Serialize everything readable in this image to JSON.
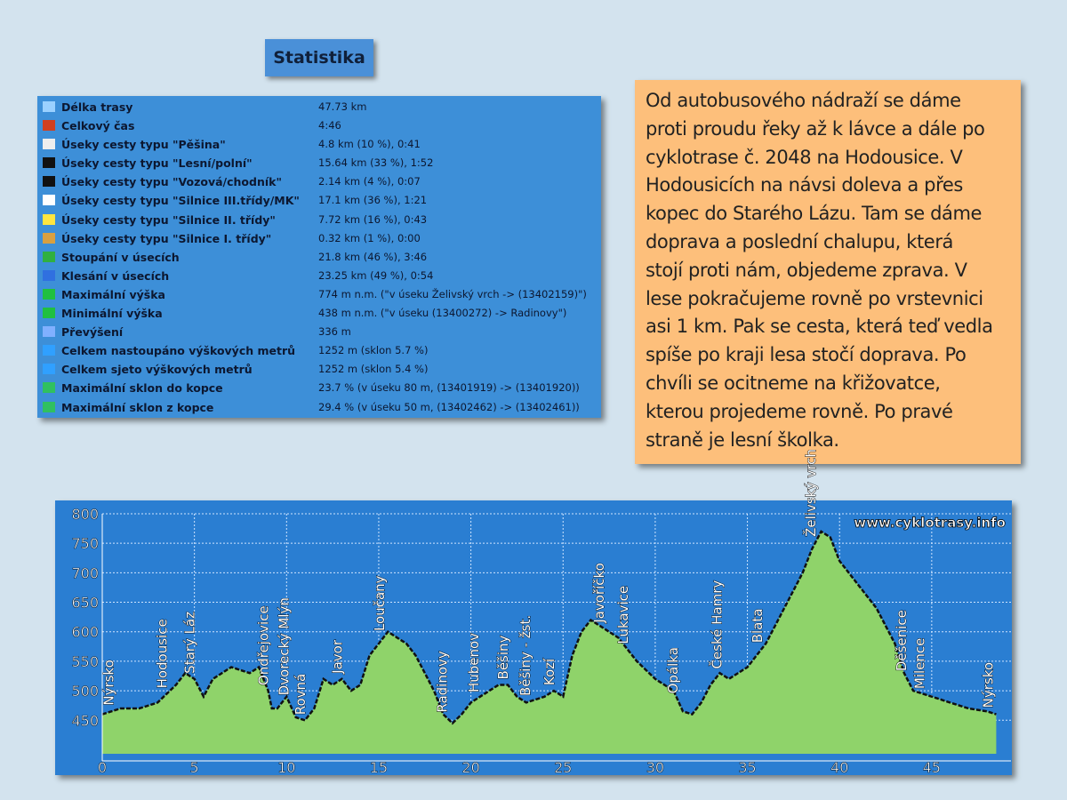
{
  "title": "Statistika",
  "stats": [
    {
      "label": "Délka trasy",
      "value": "47.73 km"
    },
    {
      "label": "Celkový čas",
      "value": "4:46"
    },
    {
      "label": "Úseky cesty typu \"Pěšina\"",
      "value": "4.8 km (10 %), 0:41"
    },
    {
      "label": "Úseky cesty typu \"Lesní/polní\"",
      "value": "15.64 km (33 %), 1:52"
    },
    {
      "label": "Úseky cesty typu \"Vozová/chodník\"",
      "value": "2.14 km (4 %), 0:07"
    },
    {
      "label": "Úseky cesty typu \"Silnice III.třídy/MK\"",
      "value": "17.1 km (36 %), 1:21"
    },
    {
      "label": "Úseky cesty typu \"Silnice II. třídy\"",
      "value": "7.72 km (16 %), 0:43"
    },
    {
      "label": "Úseky cesty typu \"Silnice I. třídy\"",
      "value": "0.32 km (1 %), 0:00"
    },
    {
      "label": "Stoupání v úsecích",
      "value": "21.8 km (46 %), 3:46"
    },
    {
      "label": "Klesání v úsecích",
      "value": "23.25 km (49 %), 0:54"
    },
    {
      "label": "Maximální výška",
      "value": "774 m n.m. (\"v úseku Želivský vrch -> (13402159)\")"
    },
    {
      "label": "Minimální výška",
      "value": "438 m n.m. (\"v úseku (13400272) -> Radinovy\")"
    },
    {
      "label": "Převýšení",
      "value": "336 m"
    },
    {
      "label": "Celkem nastoupáno výškových metrů",
      "value": "1252 m (sklon 5.7 %)"
    },
    {
      "label": "Celkem sjeto výškových metrů",
      "value": "1252 m (sklon 5.4 %)"
    },
    {
      "label": "Maximální sklon do kopce",
      "value": "23.7 % (v úseku 80 m, (13401919) -> (13401920))"
    },
    {
      "label": "Maximální sklon z kopce",
      "value": "29.4 % (v úseku 50 m, (13402462) -> (13402461))"
    }
  ],
  "description": [
    "Od autobusového nádraží se dáme",
    "proti proudu řeky až k lávce a dále po",
    "cyklotrase č. 2048 na Hodousice. V",
    "Hodousicích na návsi doleva a přes",
    "kopec do Starého Lázu. Tam se dáme",
    "doprava a poslední chalupu, která",
    "stojí proti nám, objedeme zprava. V",
    "lese pokračujeme rovně po vrstevnici",
    "asi 1 km. Pak se cesta, která teď vedla",
    "spíše po kraji lesa stočí doprava. Po",
    "chvíli se ocitneme na křižovatce,",
    "kterou projedeme  rovně. Po pravé",
    "straně je lesní školka."
  ],
  "chart_data": {
    "type": "area",
    "watermark": "www.cyklotrasy.info",
    "color": "#8fd36a",
    "x": [
      0,
      1,
      2,
      3,
      4,
      4.5,
      5,
      5.5,
      6,
      7,
      8,
      8.5,
      9,
      9.2,
      9.5,
      10,
      10.5,
      11,
      11.5,
      12,
      12.5,
      13,
      13.5,
      14,
      14.5,
      15,
      15.5,
      16,
      16.5,
      17,
      17.5,
      18,
      18.5,
      19,
      19.5,
      20,
      21,
      21.5,
      22,
      22.5,
      23,
      24,
      24.5,
      25,
      25.5,
      26,
      26.5,
      27,
      28,
      29,
      30,
      31,
      31.5,
      32,
      32.5,
      33,
      33.5,
      34,
      35,
      35.5,
      36,
      37,
      38,
      38.5,
      39,
      39.5,
      40,
      41,
      42,
      43,
      43.5,
      44,
      45,
      46,
      47,
      48,
      48.5
    ],
    "values": [
      460,
      470,
      470,
      480,
      510,
      530,
      520,
      490,
      520,
      540,
      530,
      540,
      500,
      470,
      470,
      490,
      455,
      450,
      470,
      520,
      510,
      520,
      500,
      510,
      560,
      580,
      600,
      590,
      580,
      560,
      530,
      500,
      460,
      445,
      460,
      480,
      500,
      510,
      510,
      490,
      480,
      490,
      500,
      490,
      560,
      600,
      620,
      610,
      590,
      550,
      520,
      500,
      465,
      460,
      480,
      510,
      530,
      520,
      540,
      560,
      580,
      640,
      700,
      740,
      770,
      760,
      720,
      680,
      640,
      580,
      530,
      500,
      490,
      480,
      470,
      465,
      460
    ],
    "xlim": [
      0,
      49.3
    ],
    "ylim": [
      360,
      800
    ],
    "xticks": [
      0,
      5,
      10,
      15,
      20,
      25,
      30,
      35,
      40,
      45
    ],
    "yticks": [
      450,
      500,
      550,
      600,
      650,
      700,
      750,
      800
    ],
    "grid": true,
    "annotations": [
      {
        "x": 0.6,
        "text": "Nýrsko"
      },
      {
        "x": 3.5,
        "text": "Hodousice"
      },
      {
        "x": 5,
        "text": "Starý Láz"
      },
      {
        "x": 9,
        "text": "Ondřejovice"
      },
      {
        "x": 10.1,
        "text": "Dvorecký Mlýn"
      },
      {
        "x": 11,
        "text": "Rovná"
      },
      {
        "x": 13,
        "text": "Javor"
      },
      {
        "x": 15.3,
        "text": "Loučany"
      },
      {
        "x": 18.7,
        "text": "Radinovy"
      },
      {
        "x": 20.4,
        "text": "Hubenov"
      },
      {
        "x": 22,
        "text": "Běšiny"
      },
      {
        "x": 23.2,
        "text": "Běšiny - žst."
      },
      {
        "x": 24.5,
        "text": "Kozí"
      },
      {
        "x": 27.2,
        "text": "Javoříčko"
      },
      {
        "x": 28.5,
        "text": "Lukavice"
      },
      {
        "x": 31.2,
        "text": "Opálka"
      },
      {
        "x": 33.6,
        "text": "České Hamry"
      },
      {
        "x": 35.8,
        "text": "Blata"
      },
      {
        "x": 38.7,
        "text": "Želivský vrch"
      },
      {
        "x": 43.6,
        "text": "Děšenice"
      },
      {
        "x": 44.6,
        "text": "Milence"
      },
      {
        "x": 48.3,
        "text": "Nýrsko"
      }
    ]
  }
}
